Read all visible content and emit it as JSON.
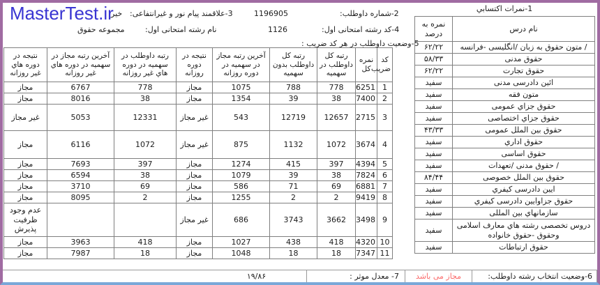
{
  "page": {
    "logo": "MasterTest.ir",
    "colors": {
      "logo": "#3935d2",
      "frame": "#a06ba2",
      "frame_bottom": "#7aa8d8",
      "status_text": "#fb6b6b",
      "table_border": "#7f7f7f"
    }
  },
  "header": {
    "candidate_number_label": "2-شماره داوطلب:",
    "candidate_number_value": "1196905",
    "payamnoor_label": "3-علاقمند پیام نور و غیرانتفاعی:",
    "payamnoor_value": "خیر",
    "first_field_code_label": "4-كد رشته امتحانی اول:",
    "first_field_code_value": "1126",
    "first_field_name_label": "نام رشته امتحانی اول:",
    "first_field_name_value": "مجموعه حقوق",
    "status_section_label": "5-وضعیت داوطلب در هر كد ضریب :"
  },
  "scores_table": {
    "title": "1-نمرات اكتسابي",
    "headers": [
      "نام درس",
      "نمره به درصد"
    ],
    "rows": [
      [
        "/ متون حقوق به زبان /انگلیسی -فرانسه",
        "۶۲/۲۲"
      ],
      [
        "حقوق مدنی",
        "۵۸/۳۳"
      ],
      [
        "حقوق تجارت",
        "۶۲/۲۲"
      ],
      [
        "ائین دادرسی مدنی",
        "سفید"
      ],
      [
        "متون فقه",
        "سفید"
      ],
      [
        "حقوق جزاي عمومی",
        "سفید"
      ],
      [
        "حقوق جزاي اختصاصی",
        "سفید"
      ],
      [
        "حقوق بین الملل عمومی",
        "۴۳/۳۳"
      ],
      [
        "حقوق اداري",
        "سفید"
      ],
      [
        "حقوق اساسی",
        "سفید"
      ],
      [
        "/ حقوق مدنی /تعهدات",
        "سفید"
      ],
      [
        "حقوق بین الملل خصوصی",
        "۸۴/۴۴"
      ],
      [
        "ایین دادرسی كیفري",
        "سفید"
      ],
      [
        "حقوق جزاوایین دادرسی كیفري",
        "سفید"
      ],
      [
        "سازمانهاي بین المللی",
        "سفید"
      ],
      [
        "دروس تخصصی رشته هاي معارف اسلامی وحقوق -حقوق خانواده",
        "سفید"
      ],
      [
        "حقوق ارتباطات",
        "سفید"
      ]
    ]
  },
  "status_table": {
    "headers": [
      "كد ضریب",
      "نمره كل",
      "رتبه كل داوطلب در سهمیه",
      "رتبه كل داوطلب بدون سهمیه",
      "آخرین رتبه مجاز در سهمیه در دوره روزانه",
      "نتیجه در دوره روزانه",
      "رتبه داوطلب در سهمیه در دوره هاي غیر روزانه",
      "آخرین رتبه مجاز در سهمیه در دوره هاي غیر روزانه",
      "نتیجه در دوره هاي غیر روزانه"
    ],
    "rows": [
      [
        "1",
        "6251",
        "778",
        "788",
        "1075",
        "مجاز",
        "778",
        "6767",
        "مجاز"
      ],
      [
        "2",
        "7400",
        "38",
        "39",
        "1354",
        "مجاز",
        "38",
        "8016",
        "مجاز"
      ],
      [
        "3",
        "2715",
        "12657",
        "12719",
        "543",
        "غیر مجاز",
        "12331",
        "5053",
        "غیر مجاز"
      ],
      [
        "4",
        "3674",
        "1072",
        "1132",
        "875",
        "غیر مجاز",
        "1072",
        "6116",
        "مجاز"
      ],
      [
        "5",
        "4394",
        "397",
        "415",
        "1274",
        "مجاز",
        "397",
        "7693",
        "مجاز"
      ],
      [
        "6",
        "7824",
        "38",
        "39",
        "1079",
        "مجاز",
        "38",
        "6594",
        "مجاز"
      ],
      [
        "7",
        "6881",
        "69",
        "71",
        "586",
        "مجاز",
        "69",
        "3710",
        "مجاز"
      ],
      [
        "8",
        "9419",
        "2",
        "2",
        "1255",
        "مجاز",
        "2",
        "8095",
        "مجاز"
      ],
      [
        "9",
        "3498",
        "3662",
        "3743",
        "686",
        "غیر مجاز",
        "",
        "",
        "عدم وجود ظرفیت پذیرش"
      ],
      [
        "10",
        "4320",
        "418",
        "438",
        "1027",
        "مجاز",
        "418",
        "3963",
        "مجاز"
      ],
      [
        "11",
        "7347",
        "18",
        "18",
        "1048",
        "مجاز",
        "18",
        "7987",
        "مجاز"
      ]
    ]
  },
  "footer": {
    "selection_status_label": "6-وضعیت انتخاب رشته داوطلب:",
    "selection_status_value": "مجاز می باشد",
    "gpa_label": "7- معدل موثر :",
    "gpa_value": "۱۹/۸۶"
  }
}
